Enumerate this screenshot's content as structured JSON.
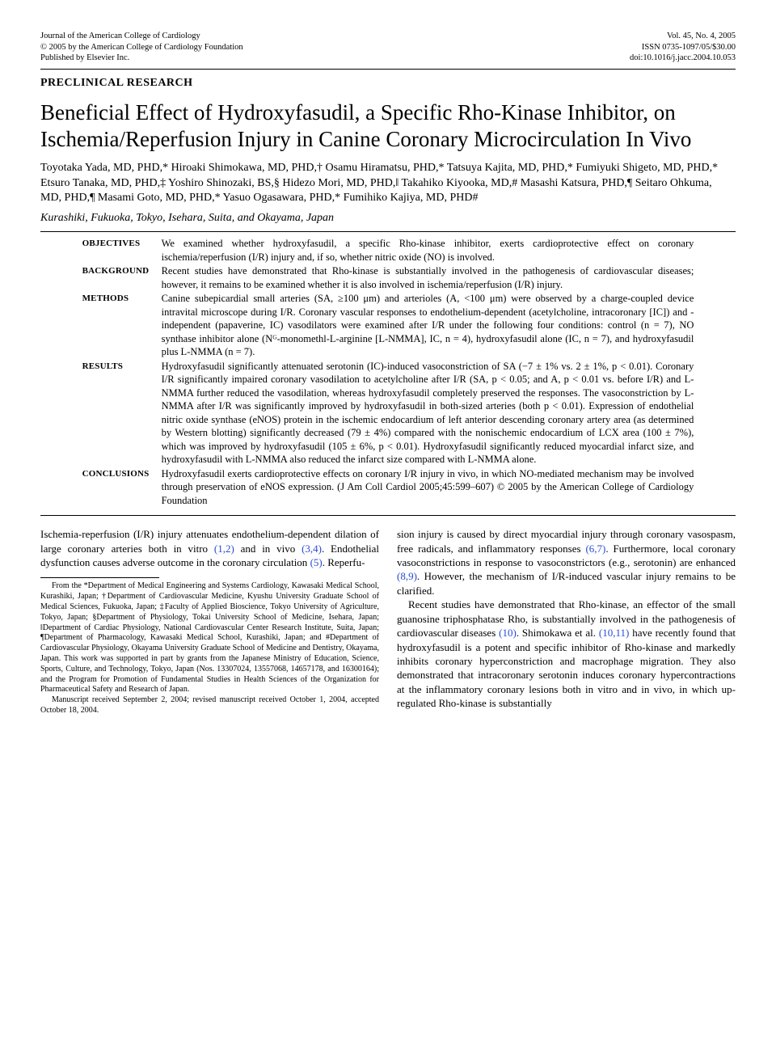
{
  "header": {
    "left": {
      "l1": "Journal of the American College of Cardiology",
      "l2": "© 2005 by the American College of Cardiology Foundation",
      "l3": "Published by Elsevier Inc."
    },
    "right": {
      "l1": "Vol. 45, No. 4, 2005",
      "l2": "ISSN 0735-1097/05/$30.00",
      "l3": "doi:10.1016/j.jacc.2004.10.053"
    }
  },
  "section_label": "PRECLINICAL RESEARCH",
  "title": "Beneficial Effect of Hydroxyfasudil, a Specific Rho-Kinase Inhibitor, on Ischemia/Reperfusion Injury in Canine Coronary Microcirculation In Vivo",
  "authors": "Toyotaka Yada, MD, PHD,* Hiroaki Shimokawa, MD, PHD,† Osamu Hiramatsu, PHD,* Tatsuya Kajita, MD, PHD,* Fumiyuki Shigeto, MD, PHD,* Etsuro Tanaka, MD, PHD,‡ Yoshiro Shinozaki, BS,§ Hidezo Mori, MD, PHD,‖ Takahiko Kiyooka, MD,# Masashi Katsura, PHD,¶ Seitaro Ohkuma, MD, PHD,¶ Masami Goto, MD, PHD,* Yasuo Ogasawara, PHD,* Fumihiko Kajiya, MD, PHD#",
  "affiliations": "Kurashiki, Fukuoka, Tokyo, Isehara, Suita, and Okayama, Japan",
  "abstract": [
    {
      "label": "OBJECTIVES",
      "text": "We examined whether hydroxyfasudil, a specific Rho-kinase inhibitor, exerts cardioprotective effect on coronary ischemia/reperfusion (I/R) injury and, if so, whether nitric oxide (NO) is involved."
    },
    {
      "label": "BACKGROUND",
      "text": "Recent studies have demonstrated that Rho-kinase is substantially involved in the pathogenesis of cardiovascular diseases; however, it remains to be examined whether it is also involved in ischemia/reperfusion (I/R) injury."
    },
    {
      "label": "METHODS",
      "text": "Canine subepicardial small arteries (SA, ≥100 μm) and arterioles (A, <100 μm) were observed by a charge-coupled device intravital microscope during I/R. Coronary vascular responses to endothelium-dependent (acetylcholine, intracoronary [IC]) and -independent (papaverine, IC) vasodilators were examined after I/R under the following four conditions: control (n = 7), NO synthase inhibitor alone (Nᴳ-monomethl-L-arginine [L-NMMA], IC, n = 4), hydroxyfasudil alone (IC, n = 7), and hydroxyfasudil plus L-NMMA (n = 7)."
    },
    {
      "label": "RESULTS",
      "text": "Hydroxyfasudil significantly attenuated serotonin (IC)-induced vasoconstriction of SA (−7 ± 1% vs. 2 ± 1%, p < 0.01). Coronary I/R significantly impaired coronary vasodilation to acetylcholine after I/R (SA, p < 0.05; and A, p < 0.01 vs. before I/R) and L-NMMA further reduced the vasodilation, whereas hydroxyfasudil completely preserved the responses. The vasoconstriction by L-NMMA after I/R was significantly improved by hydroxyfasudil in both-sized arteries (both p < 0.01). Expression of endothelial nitric oxide synthase (eNOS) protein in the ischemic endocardium of left anterior descending coronary artery area (as determined by Western blotting) significantly decreased (79 ± 4%) compared with the nonischemic endocardium of LCX area (100 ± 7%), which was improved by hydroxyfasudil (105 ± 6%, p < 0.01). Hydroxyfasudil significantly reduced myocardial infarct size, and hydroxyfasudil with L-NMMA also reduced the infarct size compared with L-NMMA alone."
    },
    {
      "label": "CONCLUSIONS",
      "text": "Hydroxyfasudil exerts cardioprotective effects on coronary I/R injury in vivo, in which NO-mediated mechanism may be involved through preservation of eNOS expression.  (J Am Coll Cardiol 2005;45:599–607) © 2005 by the American College of Cardiology Foundation"
    }
  ],
  "body": {
    "col1": {
      "p1a": "Ischemia-reperfusion (I/R) injury attenuates endothelium-dependent dilation of large coronary arteries both in vitro ",
      "ref1": "(1,2)",
      "p1b": " and in vivo ",
      "ref2": "(3,4)",
      "p1c": ". Endothelial dysfunction causes adverse outcome in the coronary circulation ",
      "ref3": "(5)",
      "p1d": ". Reperfu-"
    },
    "footnote": {
      "p1": "From the *Department of Medical Engineering and Systems Cardiology, Kawasaki Medical School, Kurashiki, Japan; †Department of Cardiovascular Medicine, Kyushu University Graduate School of Medical Sciences, Fukuoka, Japan; ‡Faculty of Applied Bioscience, Tokyo University of Agriculture, Tokyo, Japan; §Department of Physiology, Tokai University School of Medicine, Isehara, Japan; ‖Department of Cardiac Physiology, National Cardiovascular Center Research Institute, Suita, Japan; ¶Department of Pharmacology, Kawasaki Medical School, Kurashiki, Japan; and #Department of Cardiovascular Physiology, Okayama University Graduate School of Medicine and Dentistry, Okayama, Japan. This work was supported in part by grants from the Japanese Ministry of Education, Science, Sports, Culture, and Technology, Tokyo, Japan (Nos. 13307024, 13557068, 14657178, and 16300164); and the Program for Promotion of Fundamental Studies in Health Sciences of the Organization for Pharmaceutical Safety and Research of Japan.",
      "p2": "Manuscript received September 2, 2004; revised manuscript received October 1, 2004, accepted October 18, 2004."
    },
    "col2": {
      "p1a": "sion injury is caused by direct myocardial injury through coronary vasospasm, free radicals, and inflammatory responses ",
      "ref4": "(6,7)",
      "p1b": ". Furthermore, local coronary vasoconstrictions in response to vasoconstrictors (e.g., serotonin) are enhanced ",
      "ref5": "(8,9)",
      "p1c": ". However, the mechanism of I/R-induced vascular injury remains to be clarified.",
      "p2a": "Recent studies have demonstrated that Rho-kinase, an effector of the small guanosine triphosphatase Rho, is substantially involved in the pathogenesis of cardiovascular diseases ",
      "ref6": "(10)",
      "p2b": ". Shimokawa et al. ",
      "ref7": "(10,11)",
      "p2c": " have recently found that hydroxyfasudil is a potent and specific inhibitor of Rho-kinase and markedly inhibits coronary hyperconstriction and macrophage migration. They also demonstrated that intracoronary serotonin induces coronary hypercontractions at the inflammatory coronary lesions both in vitro and in vivo, in which up-regulated Rho-kinase is substantially"
    }
  }
}
